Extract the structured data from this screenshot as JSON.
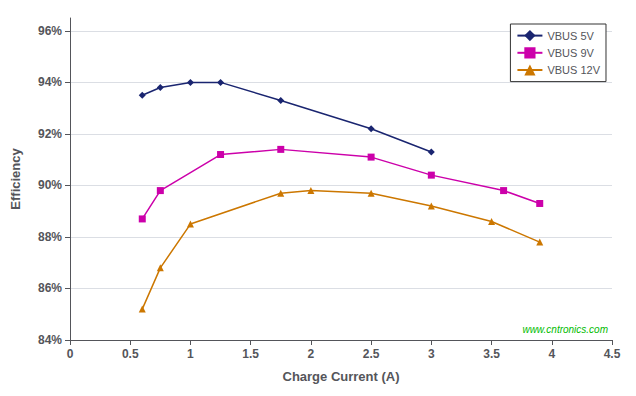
{
  "chart_data": {
    "type": "line",
    "xlabel": "Charge Current (A)",
    "ylabel": "Efficiency",
    "series": [
      {
        "name": "VBUS 5V",
        "color": "#1a2570",
        "marker": "diamond",
        "x": [
          0.6,
          0.75,
          1.0,
          1.25,
          1.75,
          2.5,
          3.0
        ],
        "values": [
          93.5,
          93.8,
          94.0,
          94.0,
          93.3,
          92.2,
          91.3
        ]
      },
      {
        "name": "VBUS 9V",
        "color": "#cc00aa",
        "marker": "square",
        "x": [
          0.6,
          0.75,
          1.25,
          1.75,
          2.5,
          3.0,
          3.6,
          3.9
        ],
        "values": [
          88.7,
          89.8,
          91.2,
          91.4,
          91.1,
          90.4,
          89.8,
          89.3
        ]
      },
      {
        "name": "VBUS 12V",
        "color": "#cc7700",
        "marker": "triangle",
        "x": [
          0.6,
          0.75,
          1.0,
          1.75,
          2.0,
          2.5,
          3.0,
          3.5,
          3.9
        ],
        "values": [
          85.2,
          86.8,
          88.5,
          89.7,
          89.8,
          89.7,
          89.2,
          88.6,
          87.8
        ]
      }
    ],
    "xlim": [
      0,
      4.5
    ],
    "xticks": [
      0,
      0.5,
      1,
      1.5,
      2,
      2.5,
      3,
      3.5,
      4,
      4.5
    ],
    "ylim": [
      84,
      96.5
    ],
    "yticks": [
      {
        "value": 84,
        "label": "84%"
      },
      {
        "value": 86,
        "label": "86%"
      },
      {
        "value": 88,
        "label": "88%"
      },
      {
        "value": 90,
        "label": "90%"
      },
      {
        "value": 92,
        "label": "92%"
      },
      {
        "value": 94,
        "label": "94%"
      },
      {
        "value": 96,
        "label": "96%"
      }
    ],
    "grid": true,
    "legend": "upper right",
    "annotations": [
      {
        "text": "www.cntronics.com",
        "color": "#00bb00"
      }
    ]
  }
}
